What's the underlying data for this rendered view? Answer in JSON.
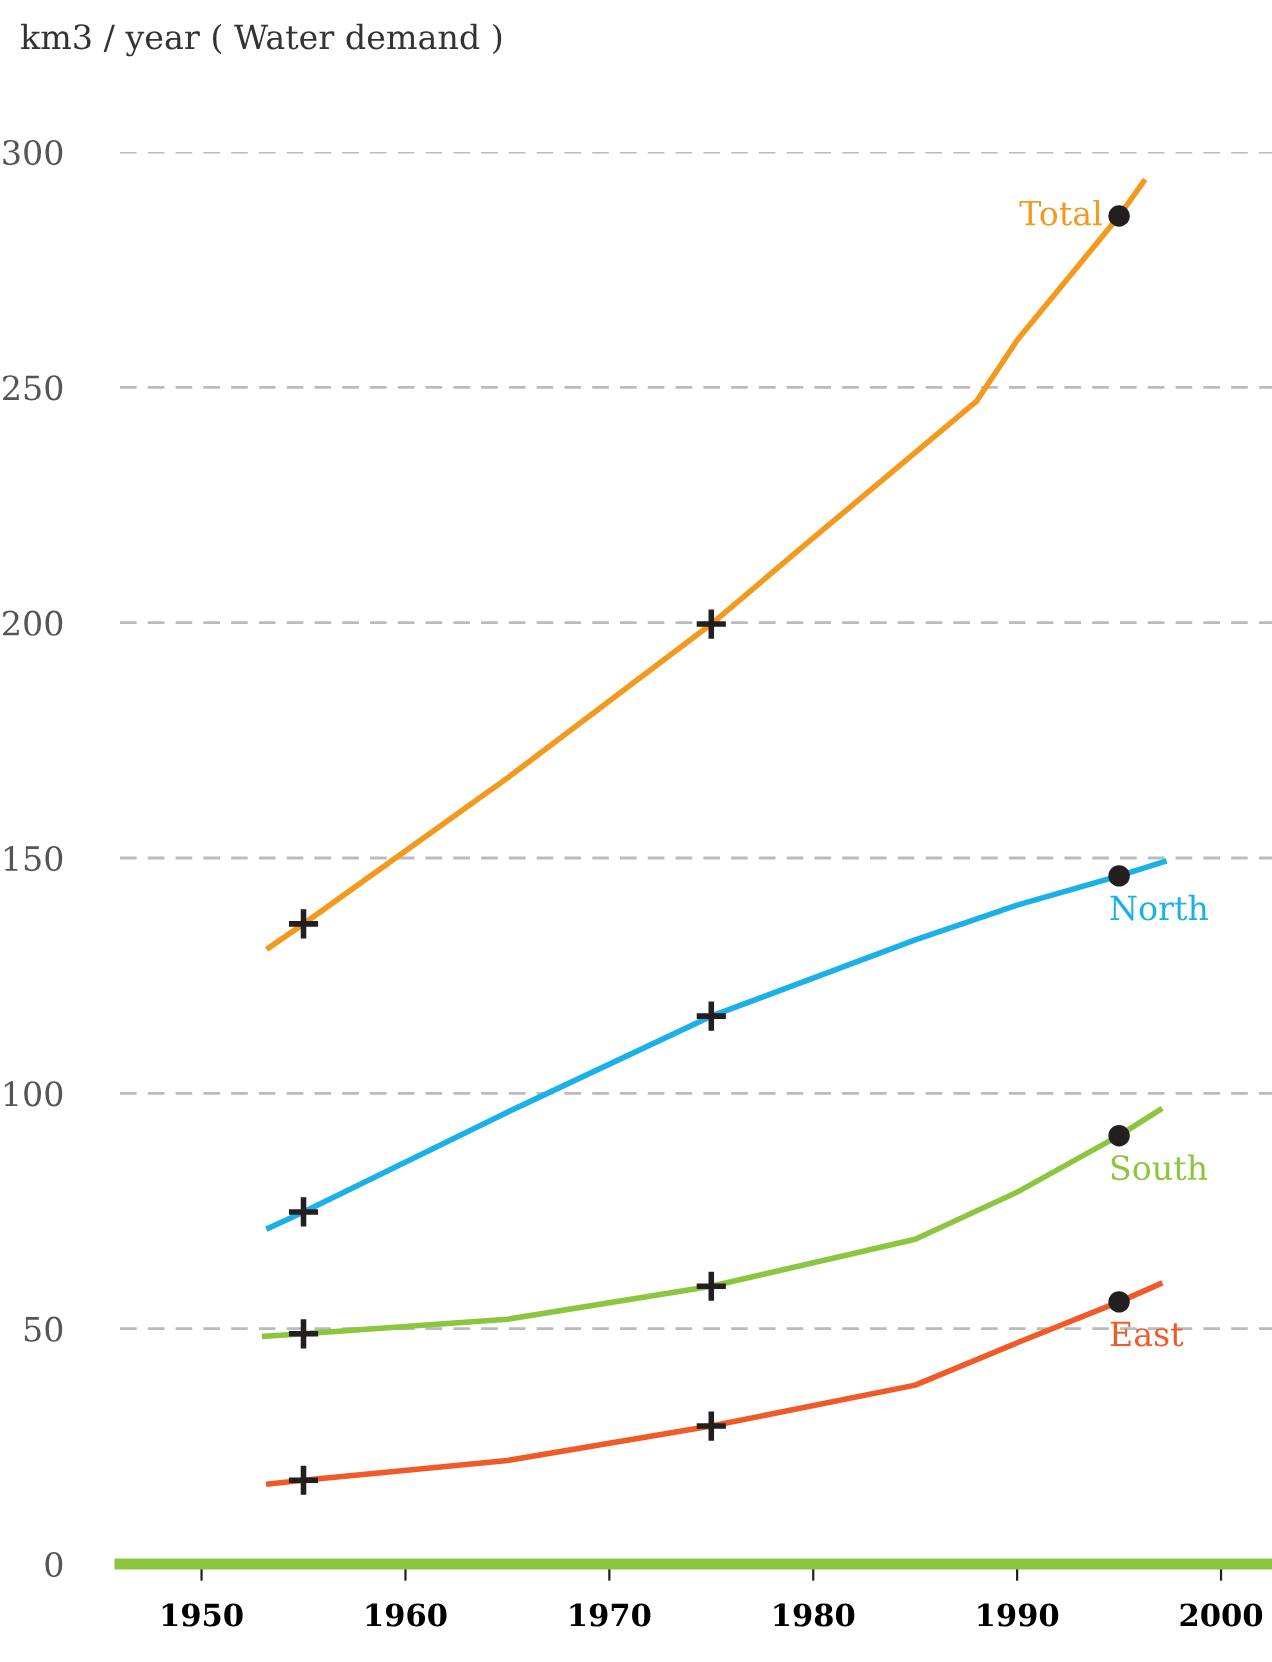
{
  "chart_data": {
    "type": "line",
    "ylabel": "km3 / year ( Water demand )",
    "xlim": [
      1946,
      2002.5
    ],
    "xticks": [
      1950,
      1960,
      1970,
      1980,
      1990,
      2000
    ],
    "ylim": [
      0,
      300
    ],
    "yticks": [
      0,
      50,
      100,
      150,
      200,
      250,
      300
    ],
    "grid": "y",
    "legend": false,
    "series": [
      {
        "name": "Total",
        "color": "#f39a1e",
        "x": [
          1953.3,
          1955,
          1965,
          1975,
          1980,
          1988,
          1990,
          1995,
          1996.2
        ],
        "values": [
          130.9,
          136,
          167,
          199.7,
          218,
          247,
          260,
          286.4,
          293.7
        ]
      },
      {
        "name": "North",
        "color": "#1ab0e8",
        "x": [
          1953.3,
          1955,
          1965,
          1975,
          1985,
          1990,
          1995,
          1997.2
        ],
        "values": [
          71.4,
          74.8,
          96,
          116.4,
          132.6,
          140,
          146.2,
          149.2
        ]
      },
      {
        "name": "South",
        "color": "#8cc63f",
        "x": [
          1953.1,
          1955,
          1965,
          1975,
          1985,
          1990,
          1995,
          1997
        ],
        "values": [
          48.4,
          48.9,
          52,
          59,
          69,
          79,
          91,
          96.5
        ]
      },
      {
        "name": "East",
        "color": "#f05a28",
        "x": [
          1953.3,
          1955,
          1965,
          1975,
          1985,
          1990,
          1995,
          1997
        ],
        "values": [
          17,
          17.8,
          22,
          29.3,
          38,
          47,
          55.7,
          59.5
        ]
      },
      {
        "type": "scatter",
        "marker": "cross",
        "color": "#231f20",
        "x": [
          1955,
          1975,
          1955,
          1975,
          1955,
          1975,
          1955,
          1975
        ],
        "values": [
          136,
          199.7,
          74.8,
          116.4,
          48.9,
          59,
          17.8,
          29.3
        ]
      },
      {
        "type": "scatter",
        "marker": "circle",
        "color": "#231f20",
        "x": [
          1995,
          1995,
          1995,
          1995
        ],
        "values": [
          286.4,
          146.2,
          91,
          55.7
        ]
      }
    ]
  }
}
